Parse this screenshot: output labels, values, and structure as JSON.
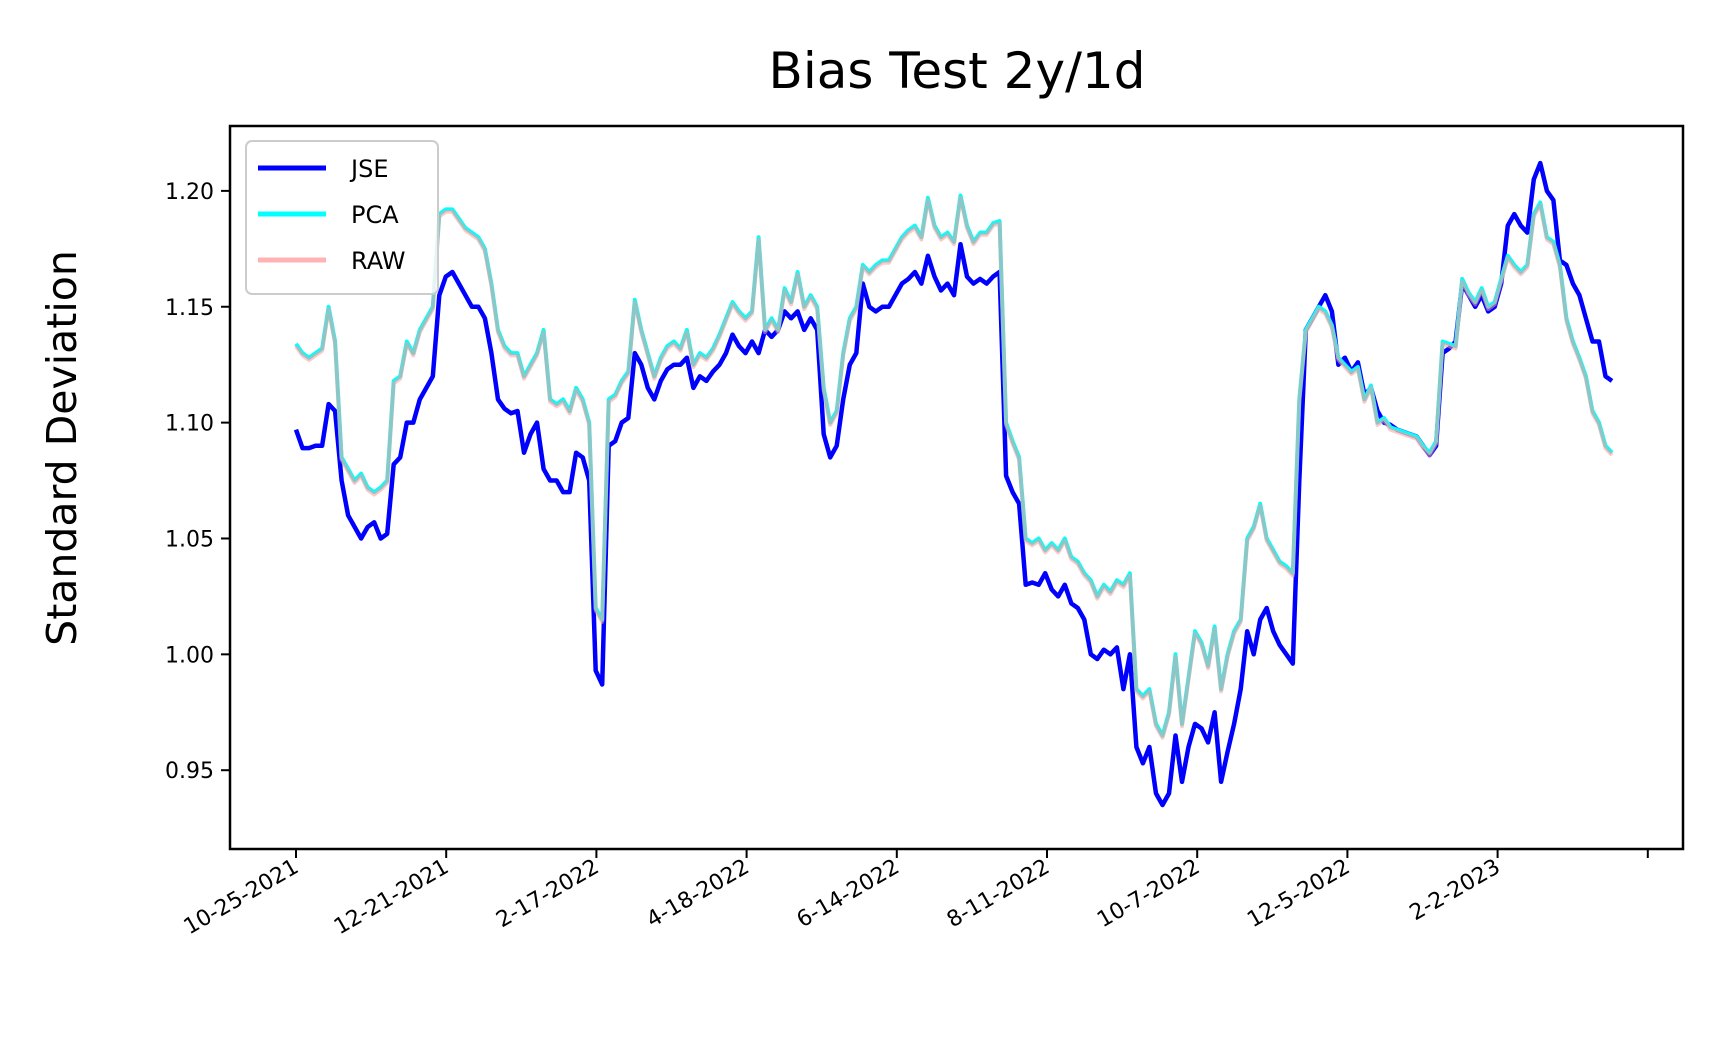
{
  "chart_data": {
    "type": "line",
    "title": "Bias Test 2y/1d",
    "xlabel": "",
    "ylabel": "Standard Deviation",
    "ylim": [
      0.916,
      1.228
    ],
    "grid": false,
    "legend_position": "top-left",
    "x_tick_labels": [
      "10-25-2021",
      "12-21-2021",
      "2-17-2022",
      "4-18-2022",
      "6-14-2022",
      "8-11-2022",
      "10-7-2022",
      "12-5-2022",
      "2-2-2023",
      ""
    ],
    "y_ticks": [
      0.95,
      1.0,
      1.05,
      1.1,
      1.15,
      1.2
    ],
    "y_tick_labels": [
      "0.95",
      "1.00",
      "1.05",
      "1.10",
      "1.15",
      "1.20"
    ],
    "series": [
      {
        "name": "JSE",
        "color": "#0000ff",
        "values": [
          1.097,
          1.089,
          1.089,
          1.09,
          1.09,
          1.108,
          1.105,
          1.075,
          1.06,
          1.055,
          1.05,
          1.055,
          1.057,
          1.05,
          1.052,
          1.082,
          1.085,
          1.1,
          1.1,
          1.11,
          1.115,
          1.12,
          1.155,
          1.163,
          1.165,
          1.16,
          1.155,
          1.15,
          1.15,
          1.145,
          1.13,
          1.11,
          1.106,
          1.104,
          1.105,
          1.087,
          1.095,
          1.1,
          1.08,
          1.075,
          1.075,
          1.07,
          1.07,
          1.087,
          1.085,
          1.075,
          0.993,
          0.987,
          1.09,
          1.092,
          1.1,
          1.102,
          1.13,
          1.125,
          1.115,
          1.11,
          1.118,
          1.123,
          1.125,
          1.125,
          1.128,
          1.115,
          1.12,
          1.118,
          1.122,
          1.125,
          1.13,
          1.138,
          1.133,
          1.13,
          1.135,
          1.13,
          1.14,
          1.137,
          1.14,
          1.148,
          1.145,
          1.148,
          1.14,
          1.145,
          1.14,
          1.095,
          1.085,
          1.09,
          1.11,
          1.125,
          1.13,
          1.16,
          1.15,
          1.148,
          1.15,
          1.15,
          1.155,
          1.16,
          1.162,
          1.165,
          1.16,
          1.172,
          1.163,
          1.157,
          1.16,
          1.155,
          1.177,
          1.163,
          1.16,
          1.162,
          1.16,
          1.163,
          1.165,
          1.077,
          1.07,
          1.065,
          1.03,
          1.031,
          1.03,
          1.035,
          1.028,
          1.025,
          1.03,
          1.022,
          1.02,
          1.015,
          1.0,
          0.998,
          1.002,
          1.0,
          1.003,
          0.985,
          1.0,
          0.96,
          0.953,
          0.96,
          0.94,
          0.935,
          0.94,
          0.965,
          0.945,
          0.96,
          0.97,
          0.968,
          0.962,
          0.975,
          0.945,
          0.958,
          0.97,
          0.985,
          1.01,
          1.0,
          1.015,
          1.02,
          1.01,
          1.004,
          1.0,
          0.996,
          1.075,
          1.14,
          1.145,
          1.15,
          1.155,
          1.148,
          1.125,
          1.128,
          1.122,
          1.126,
          1.112,
          1.115,
          1.105,
          1.1,
          1.099,
          1.097,
          1.096,
          1.095,
          1.094,
          1.09,
          1.086,
          1.09,
          1.13,
          1.132,
          1.135,
          1.16,
          1.155,
          1.15,
          1.155,
          1.148,
          1.15,
          1.16,
          1.185,
          1.19,
          1.185,
          1.182,
          1.205,
          1.212,
          1.2,
          1.196,
          1.17,
          1.168,
          1.16,
          1.155,
          1.145,
          1.135,
          1.135,
          1.12,
          1.118
        ]
      },
      {
        "name": "PCA",
        "color": "#00ffff",
        "values": [
          1.134,
          1.13,
          1.128,
          1.13,
          1.132,
          1.15,
          1.135,
          1.085,
          1.08,
          1.075,
          1.078,
          1.072,
          1.07,
          1.072,
          1.075,
          1.118,
          1.12,
          1.135,
          1.13,
          1.14,
          1.145,
          1.15,
          1.19,
          1.192,
          1.192,
          1.188,
          1.184,
          1.182,
          1.18,
          1.175,
          1.16,
          1.14,
          1.133,
          1.13,
          1.13,
          1.12,
          1.125,
          1.13,
          1.14,
          1.11,
          1.108,
          1.11,
          1.105,
          1.115,
          1.11,
          1.1,
          1.02,
          1.015,
          1.11,
          1.112,
          1.118,
          1.122,
          1.153,
          1.14,
          1.13,
          1.12,
          1.128,
          1.133,
          1.135,
          1.132,
          1.14,
          1.125,
          1.13,
          1.128,
          1.132,
          1.138,
          1.145,
          1.152,
          1.148,
          1.145,
          1.148,
          1.18,
          1.14,
          1.145,
          1.14,
          1.158,
          1.152,
          1.165,
          1.15,
          1.155,
          1.15,
          1.115,
          1.1,
          1.105,
          1.13,
          1.145,
          1.15,
          1.168,
          1.165,
          1.168,
          1.17,
          1.17,
          1.175,
          1.18,
          1.183,
          1.185,
          1.18,
          1.197,
          1.185,
          1.18,
          1.182,
          1.178,
          1.198,
          1.185,
          1.178,
          1.182,
          1.182,
          1.186,
          1.187,
          1.1,
          1.092,
          1.085,
          1.05,
          1.048,
          1.05,
          1.045,
          1.048,
          1.045,
          1.05,
          1.042,
          1.04,
          1.035,
          1.032,
          1.025,
          1.03,
          1.027,
          1.032,
          1.03,
          1.035,
          0.985,
          0.982,
          0.985,
          0.97,
          0.965,
          0.975,
          1.0,
          0.97,
          0.99,
          1.01,
          1.005,
          0.995,
          1.012,
          0.985,
          1.0,
          1.01,
          1.015,
          1.05,
          1.055,
          1.065,
          1.05,
          1.045,
          1.04,
          1.038,
          1.035,
          1.11,
          1.14,
          1.145,
          1.15,
          1.148,
          1.142,
          1.128,
          1.125,
          1.122,
          1.124,
          1.11,
          1.116,
          1.1,
          1.102,
          1.098,
          1.097,
          1.096,
          1.095,
          1.094,
          1.09,
          1.087,
          1.092,
          1.135,
          1.134,
          1.133,
          1.162,
          1.156,
          1.152,
          1.158,
          1.15,
          1.152,
          1.162,
          1.172,
          1.168,
          1.165,
          1.168,
          1.19,
          1.195,
          1.18,
          1.178,
          1.168,
          1.145,
          1.135,
          1.128,
          1.12,
          1.105,
          1.1,
          1.09,
          1.087
        ]
      },
      {
        "name": "RAW",
        "color": "#ff9999",
        "values": [
          1.133,
          1.129,
          1.127,
          1.129,
          1.131,
          1.149,
          1.134,
          1.084,
          1.079,
          1.074,
          1.077,
          1.071,
          1.069,
          1.071,
          1.074,
          1.117,
          1.119,
          1.134,
          1.129,
          1.139,
          1.144,
          1.149,
          1.189,
          1.191,
          1.191,
          1.187,
          1.183,
          1.181,
          1.179,
          1.174,
          1.159,
          1.139,
          1.132,
          1.129,
          1.129,
          1.119,
          1.124,
          1.129,
          1.139,
          1.109,
          1.107,
          1.109,
          1.104,
          1.114,
          1.109,
          1.099,
          1.019,
          1.014,
          1.109,
          1.111,
          1.117,
          1.121,
          1.152,
          1.139,
          1.129,
          1.119,
          1.127,
          1.132,
          1.134,
          1.131,
          1.139,
          1.124,
          1.129,
          1.127,
          1.131,
          1.137,
          1.144,
          1.151,
          1.147,
          1.144,
          1.147,
          1.179,
          1.139,
          1.144,
          1.139,
          1.157,
          1.151,
          1.164,
          1.149,
          1.154,
          1.149,
          1.114,
          1.099,
          1.104,
          1.129,
          1.144,
          1.149,
          1.167,
          1.164,
          1.167,
          1.169,
          1.169,
          1.174,
          1.179,
          1.182,
          1.184,
          1.179,
          1.196,
          1.184,
          1.179,
          1.181,
          1.177,
          1.197,
          1.184,
          1.177,
          1.181,
          1.181,
          1.185,
          1.186,
          1.099,
          1.091,
          1.084,
          1.049,
          1.047,
          1.049,
          1.044,
          1.047,
          1.044,
          1.049,
          1.041,
          1.039,
          1.034,
          1.031,
          1.024,
          1.029,
          1.026,
          1.031,
          1.029,
          1.034,
          0.984,
          0.981,
          0.984,
          0.969,
          0.964,
          0.974,
          0.999,
          0.969,
          0.989,
          1.009,
          1.004,
          0.994,
          1.011,
          0.984,
          0.999,
          1.009,
          1.014,
          1.049,
          1.054,
          1.064,
          1.049,
          1.044,
          1.039,
          1.037,
          1.034,
          1.109,
          1.139,
          1.144,
          1.149,
          1.147,
          1.141,
          1.127,
          1.124,
          1.121,
          1.123,
          1.109,
          1.115,
          1.099,
          1.101,
          1.097,
          1.096,
          1.095,
          1.094,
          1.093,
          1.089,
          1.086,
          1.091,
          1.134,
          1.133,
          1.132,
          1.161,
          1.155,
          1.151,
          1.157,
          1.149,
          1.151,
          1.161,
          1.171,
          1.167,
          1.164,
          1.167,
          1.189,
          1.194,
          1.179,
          1.177,
          1.167,
          1.144,
          1.134,
          1.127,
          1.119,
          1.104,
          1.099,
          1.089,
          1.086
        ]
      }
    ]
  }
}
